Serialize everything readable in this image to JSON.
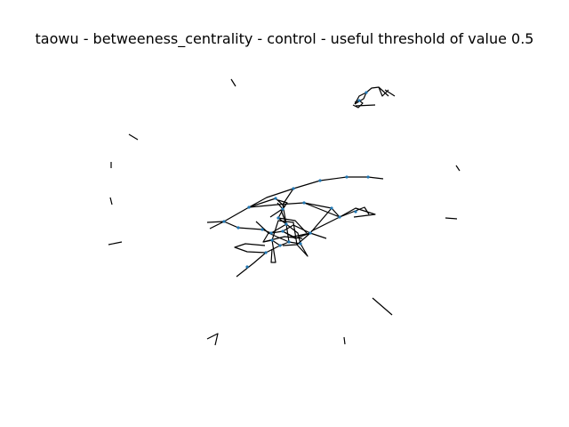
{
  "figure": {
    "title": "taowu - betweeness_centrality - control - useful threshold of value 0.5"
  },
  "graph": {
    "edge_color": "#000000",
    "node_color": "#1f77b4"
  }
}
